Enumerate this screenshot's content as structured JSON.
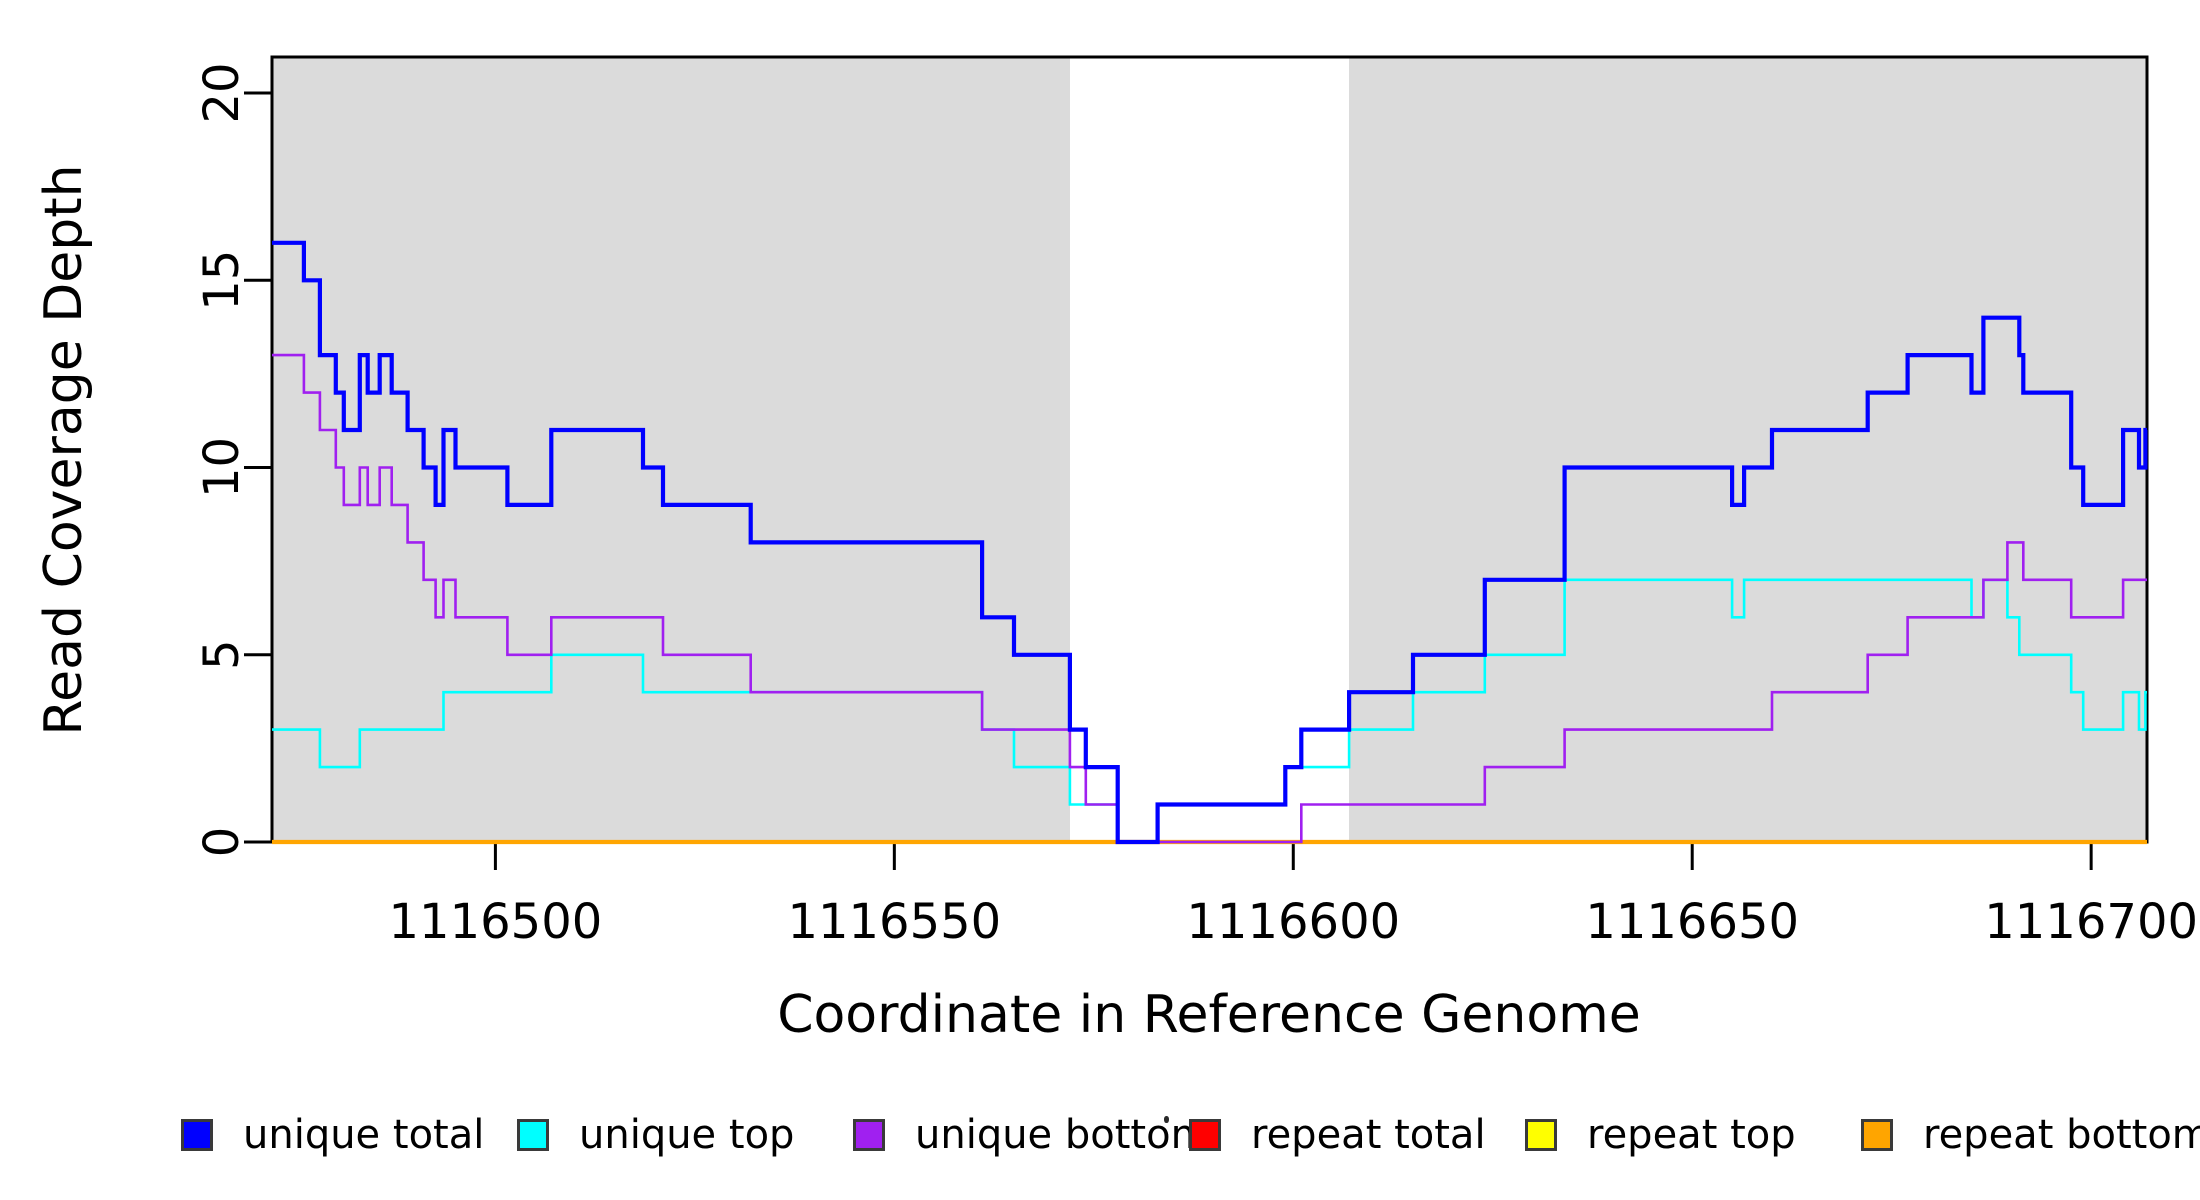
{
  "chart_data": {
    "type": "line",
    "subtype": "step",
    "title": "",
    "xlabel": "Coordinate in Reference Genome",
    "ylabel": "Read Coverage Depth",
    "xlim": [
      1116472,
      1116707
    ],
    "ylim": [
      0,
      21
    ],
    "xticks": [
      1116500,
      1116550,
      1116600,
      1116650,
      1116700
    ],
    "yticks": [
      0,
      5,
      10,
      15,
      20
    ],
    "grid": false,
    "background_color": "#ffffff",
    "shaded_regions": [
      {
        "name": "repeat-region-left",
        "from": 1116472,
        "to": 1116572,
        "color": "#dbdbdb"
      },
      {
        "name": "repeat-region-right",
        "from": 1116607,
        "to": 1116707,
        "color": "#dbdbdb"
      }
    ],
    "series": [
      {
        "name": "repeat total",
        "color": "#ff0000",
        "line_width": 2.4,
        "points": [
          [
            1116472,
            0
          ]
        ]
      },
      {
        "name": "repeat top",
        "color": "#ffff00",
        "line_width": 2.4,
        "points": [
          [
            1116472,
            0
          ]
        ]
      },
      {
        "name": "repeat bottom",
        "color": "#ffa500",
        "line_width": 4.2,
        "points": [
          [
            1116472,
            0
          ]
        ]
      },
      {
        "name": "unique top",
        "color": "#00ffff",
        "line_width": 2.6,
        "points": [
          [
            1116472,
            3
          ],
          [
            1116478,
            2
          ],
          [
            1116483,
            3
          ],
          [
            1116493.5,
            4
          ],
          [
            1116507,
            5
          ],
          [
            1116518.5,
            4
          ],
          [
            1116561,
            3
          ],
          [
            1116565,
            2
          ],
          [
            1116572,
            1
          ],
          [
            1116578,
            0
          ],
          [
            1116583,
            1
          ],
          [
            1116599,
            2
          ],
          [
            1116607,
            3
          ],
          [
            1116615,
            4
          ],
          [
            1116624,
            5
          ],
          [
            1116634,
            7
          ],
          [
            1116655,
            6
          ],
          [
            1116656.5,
            7
          ],
          [
            1116685,
            6
          ],
          [
            1116686.5,
            7
          ],
          [
            1116689.5,
            6
          ],
          [
            1116691,
            5
          ],
          [
            1116697.5,
            4
          ],
          [
            1116699,
            3
          ],
          [
            1116704,
            4
          ],
          [
            1116706,
            3
          ],
          [
            1116706.8,
            4
          ]
        ]
      },
      {
        "name": "unique bottom",
        "color": "#a020f0",
        "line_width": 2.6,
        "points": [
          [
            1116472,
            13
          ],
          [
            1116476,
            12
          ],
          [
            1116478,
            11
          ],
          [
            1116480,
            10
          ],
          [
            1116481,
            9
          ],
          [
            1116483,
            10
          ],
          [
            1116484,
            9
          ],
          [
            1116485.5,
            10
          ],
          [
            1116487,
            9
          ],
          [
            1116489,
            8
          ],
          [
            1116491,
            7
          ],
          [
            1116492.5,
            6
          ],
          [
            1116493.5,
            7
          ],
          [
            1116495,
            6
          ],
          [
            1116501.5,
            5
          ],
          [
            1116507,
            6
          ],
          [
            1116521,
            5
          ],
          [
            1116532,
            4
          ],
          [
            1116561,
            3
          ],
          [
            1116572,
            2
          ],
          [
            1116574,
            1
          ],
          [
            1116578,
            0
          ],
          [
            1116601,
            1
          ],
          [
            1116624,
            2
          ],
          [
            1116634,
            3
          ],
          [
            1116660,
            4
          ],
          [
            1116672,
            5
          ],
          [
            1116677,
            6
          ],
          [
            1116686.5,
            7
          ],
          [
            1116689.5,
            8
          ],
          [
            1116691.5,
            7
          ],
          [
            1116697.5,
            6
          ],
          [
            1116704,
            7
          ]
        ]
      },
      {
        "name": "unique total",
        "color": "#0000ff",
        "line_width": 4.2,
        "points": [
          [
            1116472,
            16
          ],
          [
            1116476,
            15
          ],
          [
            1116478,
            13
          ],
          [
            1116480,
            12
          ],
          [
            1116481,
            11
          ],
          [
            1116483,
            13
          ],
          [
            1116484,
            12
          ],
          [
            1116485.5,
            13
          ],
          [
            1116487,
            12
          ],
          [
            1116489,
            11
          ],
          [
            1116491,
            10
          ],
          [
            1116492.5,
            9
          ],
          [
            1116493.5,
            11
          ],
          [
            1116495,
            10
          ],
          [
            1116501.5,
            9
          ],
          [
            1116507,
            11
          ],
          [
            1116518.5,
            10
          ],
          [
            1116521,
            9
          ],
          [
            1116532,
            8
          ],
          [
            1116561,
            6
          ],
          [
            1116565,
            5
          ],
          [
            1116572,
            3
          ],
          [
            1116574,
            2
          ],
          [
            1116578,
            0
          ],
          [
            1116583,
            1
          ],
          [
            1116599,
            2
          ],
          [
            1116601,
            3
          ],
          [
            1116607,
            4
          ],
          [
            1116615,
            5
          ],
          [
            1116624,
            7
          ],
          [
            1116634,
            10
          ],
          [
            1116655,
            9
          ],
          [
            1116656.5,
            10
          ],
          [
            1116660,
            11
          ],
          [
            1116672,
            12
          ],
          [
            1116677,
            13
          ],
          [
            1116685,
            12
          ],
          [
            1116686.5,
            14
          ],
          [
            1116691,
            13
          ],
          [
            1116691.5,
            12
          ],
          [
            1116697.5,
            10
          ],
          [
            1116699,
            9
          ],
          [
            1116704,
            11
          ],
          [
            1116706,
            10
          ],
          [
            1116706.8,
            11
          ]
        ]
      }
    ],
    "legend": {
      "position": "bottom",
      "entries": [
        {
          "label": "unique total",
          "color": "#0000ff"
        },
        {
          "label": "unique top",
          "color": "#00ffff"
        },
        {
          "label": "unique bottom",
          "color": "#a020f0"
        },
        {
          "label": "repeat total",
          "color": "#ff0000"
        },
        {
          "label": "repeat top",
          "color": "#ffff00"
        },
        {
          "label": "repeat bottom",
          "color": "#ffa500"
        }
      ]
    },
    "axis_color": "#000000",
    "tick_label_color": "#000000"
  }
}
